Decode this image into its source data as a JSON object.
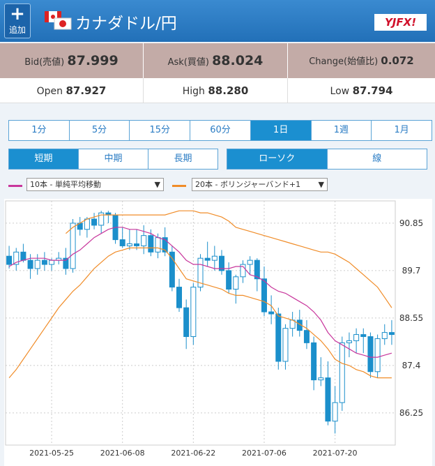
{
  "header": {
    "add_button": "追加",
    "title": "カナダドル/円",
    "logo": "YJFX!"
  },
  "quote": {
    "bid": {
      "label": "Bid(売値)",
      "value": "87.999"
    },
    "ask": {
      "label": "Ask(買値)",
      "value": "88.024"
    },
    "change": {
      "label": "Change(始値比)",
      "value": "0.072"
    },
    "open": {
      "label": "Open",
      "value": "87.927"
    },
    "high": {
      "label": "High",
      "value": "88.280"
    },
    "low": {
      "label": "Low",
      "value": "87.794"
    }
  },
  "periods": [
    "1分",
    "5分",
    "15分",
    "60分",
    "1日",
    "1週",
    "1月"
  ],
  "period_selected": 4,
  "ranges": [
    "短期",
    "中期",
    "長期"
  ],
  "range_selected": 0,
  "styles": [
    "ローソク",
    "線"
  ],
  "style_selected": 0,
  "chart_data": {
    "type": "candlestick",
    "categories": [
      null,
      null,
      null,
      null,
      null,
      null,
      "2021-05-25",
      null,
      null,
      null,
      null,
      null,
      null,
      null,
      null,
      null,
      "2021-06-08",
      null,
      null,
      null,
      null,
      null,
      null,
      null,
      null,
      null,
      "2021-06-22",
      null,
      null,
      null,
      null,
      null,
      null,
      null,
      null,
      null,
      "2021-07-06",
      null,
      null,
      null,
      null,
      null,
      null,
      null,
      null,
      null,
      "2021-07-20",
      null,
      null,
      null,
      null,
      null,
      null,
      null,
      null
    ],
    "open": [
      90.05,
      89.85,
      90.15,
      89.95,
      89.75,
      89.95,
      89.85,
      89.95,
      90.0,
      89.75,
      90.85,
      90.7,
      90.95,
      90.8,
      91.1,
      91.05,
      90.45,
      90.3,
      90.35,
      90.3,
      90.55,
      90.15,
      90.5,
      90.15,
      89.3,
      88.8,
      88.1,
      89.3,
      90.0,
      89.95,
      90.05,
      89.7,
      89.25,
      89.55,
      89.85,
      89.95,
      89.5,
      88.7,
      88.65,
      87.5,
      88.3,
      88.5,
      88.25,
      87.95,
      87.05,
      87.1,
      86.05,
      86.5,
      87.95,
      88.0,
      88.15,
      88.1,
      87.25,
      88.05,
      88.2
    ],
    "high": [
      90.3,
      90.25,
      90.35,
      90.1,
      90.1,
      90.15,
      90.0,
      90.15,
      90.25,
      90.95,
      91.0,
      91.0,
      91.1,
      91.15,
      91.15,
      91.1,
      90.75,
      90.7,
      90.7,
      90.8,
      90.7,
      90.6,
      90.75,
      90.3,
      89.5,
      89.0,
      89.4,
      90.1,
      90.4,
      90.3,
      90.2,
      89.9,
      89.6,
      89.95,
      90.05,
      90.0,
      89.8,
      89.1,
      88.8,
      88.4,
      88.7,
      88.75,
      88.5,
      88.1,
      87.6,
      87.5,
      86.9,
      88.1,
      88.2,
      88.3,
      88.3,
      88.2,
      88.15,
      88.4,
      88.5
    ],
    "low": [
      89.75,
      89.7,
      89.9,
      89.5,
      89.6,
      89.7,
      89.7,
      89.85,
      89.6,
      89.65,
      90.55,
      90.5,
      90.7,
      90.6,
      90.85,
      90.35,
      90.25,
      90.2,
      90.2,
      90.1,
      90.05,
      90.0,
      90.05,
      89.2,
      88.7,
      87.8,
      87.9,
      89.2,
      89.8,
      89.7,
      89.6,
      89.15,
      88.9,
      89.4,
      89.6,
      89.2,
      88.6,
      88.4,
      87.3,
      87.3,
      88.1,
      88.1,
      87.8,
      86.8,
      86.9,
      85.95,
      85.75,
      86.3,
      87.6,
      87.7,
      87.7,
      87.1,
      87.1,
      87.9,
      87.9
    ],
    "close": [
      89.85,
      90.15,
      89.95,
      89.75,
      89.95,
      89.85,
      89.95,
      90.0,
      89.75,
      90.85,
      90.7,
      90.95,
      90.8,
      91.1,
      91.05,
      90.45,
      90.3,
      90.35,
      90.3,
      90.55,
      90.15,
      90.5,
      90.15,
      89.3,
      88.8,
      88.1,
      89.3,
      90.0,
      89.95,
      90.05,
      89.7,
      89.25,
      89.55,
      89.85,
      89.95,
      89.5,
      88.7,
      88.65,
      87.5,
      88.3,
      88.5,
      88.25,
      87.95,
      87.05,
      87.1,
      86.05,
      86.5,
      87.95,
      88.0,
      88.15,
      88.1,
      87.25,
      88.05,
      88.2,
      88.15
    ],
    "up_color": "#ffffff",
    "down_color": "#1b8fcb",
    "candle_border": "#1b8fcb",
    "series": [
      {
        "name": "10本 - 単純平均移動",
        "color": "#c8369c",
        "values": [
          89.8,
          89.9,
          89.95,
          90.0,
          90.0,
          90.0,
          89.95,
          89.95,
          89.95,
          90.1,
          90.2,
          90.35,
          90.5,
          90.6,
          90.7,
          90.75,
          90.75,
          90.7,
          90.7,
          90.65,
          90.6,
          90.5,
          90.45,
          90.3,
          90.15,
          89.95,
          89.85,
          89.85,
          89.8,
          89.75,
          89.75,
          89.75,
          89.8,
          89.8,
          89.6,
          89.55,
          89.45,
          89.3,
          89.2,
          89.15,
          89.05,
          88.95,
          88.85,
          88.7,
          88.5,
          88.2,
          88.0,
          87.9,
          87.8,
          87.7,
          87.65,
          87.6,
          87.6,
          87.65,
          87.7
        ]
      },
      {
        "name": "20本 - ボリンジャーバンド+1",
        "color": "#f08c28",
        "upper": [
          null,
          null,
          null,
          null,
          null,
          null,
          null,
          null,
          90.6,
          90.75,
          90.85,
          90.95,
          91.0,
          91.05,
          91.05,
          91.05,
          91.05,
          91.05,
          91.05,
          91.05,
          91.05,
          91.05,
          91.05,
          91.1,
          91.15,
          91.15,
          91.15,
          91.1,
          91.1,
          91.05,
          91.0,
          90.9,
          90.75,
          90.7,
          90.65,
          90.6,
          90.55,
          90.5,
          90.45,
          90.4,
          90.35,
          90.3,
          90.25,
          90.2,
          90.15,
          90.15,
          90.1,
          90.0,
          89.9,
          89.75,
          89.6,
          89.45,
          89.3,
          89.05,
          88.8
        ],
        "lower": [
          87.1,
          87.3,
          87.55,
          87.8,
          88.05,
          88.3,
          88.55,
          88.8,
          89.0,
          89.2,
          89.35,
          89.55,
          89.75,
          89.9,
          90.05,
          90.15,
          90.2,
          90.25,
          90.25,
          90.25,
          90.25,
          90.25,
          90.2,
          90.0,
          89.75,
          89.5,
          89.45,
          89.4,
          89.35,
          89.3,
          89.25,
          89.15,
          89.1,
          89.1,
          89.05,
          89.0,
          88.95,
          88.85,
          88.6,
          88.55,
          88.5,
          88.4,
          88.3,
          88.15,
          88.0,
          87.8,
          87.55,
          87.45,
          87.4,
          87.3,
          87.25,
          87.15,
          87.1,
          87.1,
          87.1
        ]
      }
    ],
    "ylim": [
      85.47,
      91.39
    ],
    "yticks": [
      90.85,
      89.7,
      88.55,
      87.4,
      86.25
    ],
    "grid": true
  }
}
